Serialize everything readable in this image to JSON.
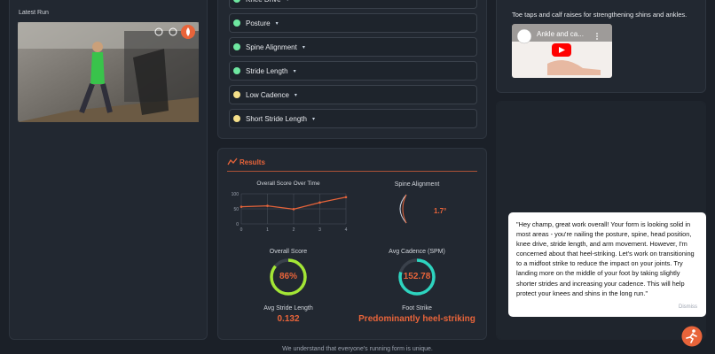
{
  "latest_run": {
    "title": "Latest Run"
  },
  "issues": [
    {
      "label": "Knee Drive",
      "status": "good"
    },
    {
      "label": "Posture",
      "status": "good"
    },
    {
      "label": "Spine Alignment",
      "status": "good"
    },
    {
      "label": "Stride Length",
      "status": "good"
    },
    {
      "label": "Low Cadence",
      "status": "warn"
    },
    {
      "label": "Short Stride Length",
      "status": "warn"
    }
  ],
  "results": {
    "title": "Results",
    "score_chart": {
      "type": "line",
      "title": "Overall Score Over Time",
      "x": [
        0,
        1,
        2,
        3,
        4
      ],
      "values": [
        57,
        60,
        49,
        71,
        89
      ],
      "xlim": [
        0,
        4
      ],
      "ylim": [
        0,
        100
      ],
      "yticks": [
        0,
        50,
        100
      ],
      "xticks": [
        0,
        1,
        2,
        3,
        4
      ],
      "color": "#e8643a",
      "grid": true
    },
    "spine_alignment": {
      "label": "Spine Alignment",
      "value_label": "1.7°"
    },
    "overall_score": {
      "label": "Overall Score",
      "value": 86,
      "value_label": "86%"
    },
    "avg_cadence": {
      "label": "Avg Cadence (SPM)",
      "value_label": "152.78"
    },
    "avg_stride_length": {
      "label": "Avg Stride Length",
      "value_label": "0.132"
    },
    "foot_strike": {
      "label": "Foot Strike",
      "value_label": "Predominantly heel-striking"
    }
  },
  "exercise": {
    "text": "Toe taps and calf raises for strengthening shins and ankles.",
    "video_title": "Ankle and ca..."
  },
  "chat": {
    "message": "\"Hey champ, great work overall! Your form is looking solid in most areas - you're nailing the posture, spine, head position, knee drive, stride length, and arm movement. However, I'm concerned about that heel-striking. Let's work on transitioning to a midfoot strike to reduce the impact on your joints. Try landing more on the middle of your foot by taking slightly shorter strides and increasing your cadence. This will help protect your knees and shins in the long run.\"",
    "dismiss": "Dismiss"
  },
  "footer": "We understand that everyone's running form is unique."
}
